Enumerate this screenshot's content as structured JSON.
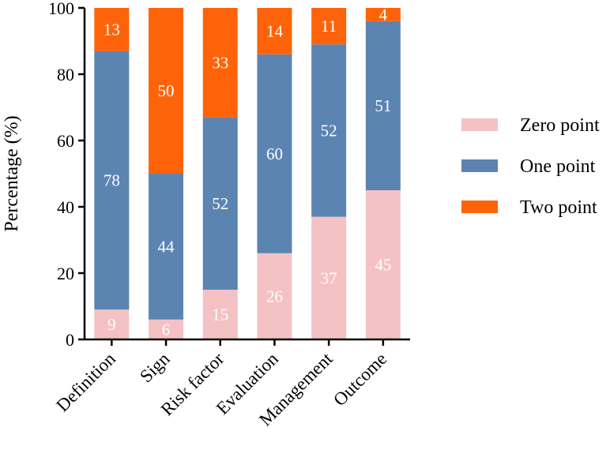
{
  "chart_data": {
    "type": "bar",
    "stacked": true,
    "categories": [
      "Definition",
      "Sign",
      "Risk factor",
      "Evaluation",
      "Management",
      "Outcome"
    ],
    "series": [
      {
        "name": "Zero point",
        "values": [
          9,
          6,
          15,
          26,
          37,
          45
        ],
        "color": "#F4C2C4"
      },
      {
        "name": "One point",
        "values": [
          78,
          44,
          52,
          60,
          52,
          51
        ],
        "color": "#5B84B1"
      },
      {
        "name": "Two point",
        "values": [
          13,
          50,
          33,
          14,
          11,
          4
        ],
        "color": "#FF6309"
      }
    ],
    "ylabel": "Percentage (%)",
    "xlabel": "",
    "ylim": [
      0,
      100
    ],
    "yticks": [
      0,
      20,
      40,
      60,
      80,
      100
    ],
    "legend_position": "right",
    "grid": false
  }
}
